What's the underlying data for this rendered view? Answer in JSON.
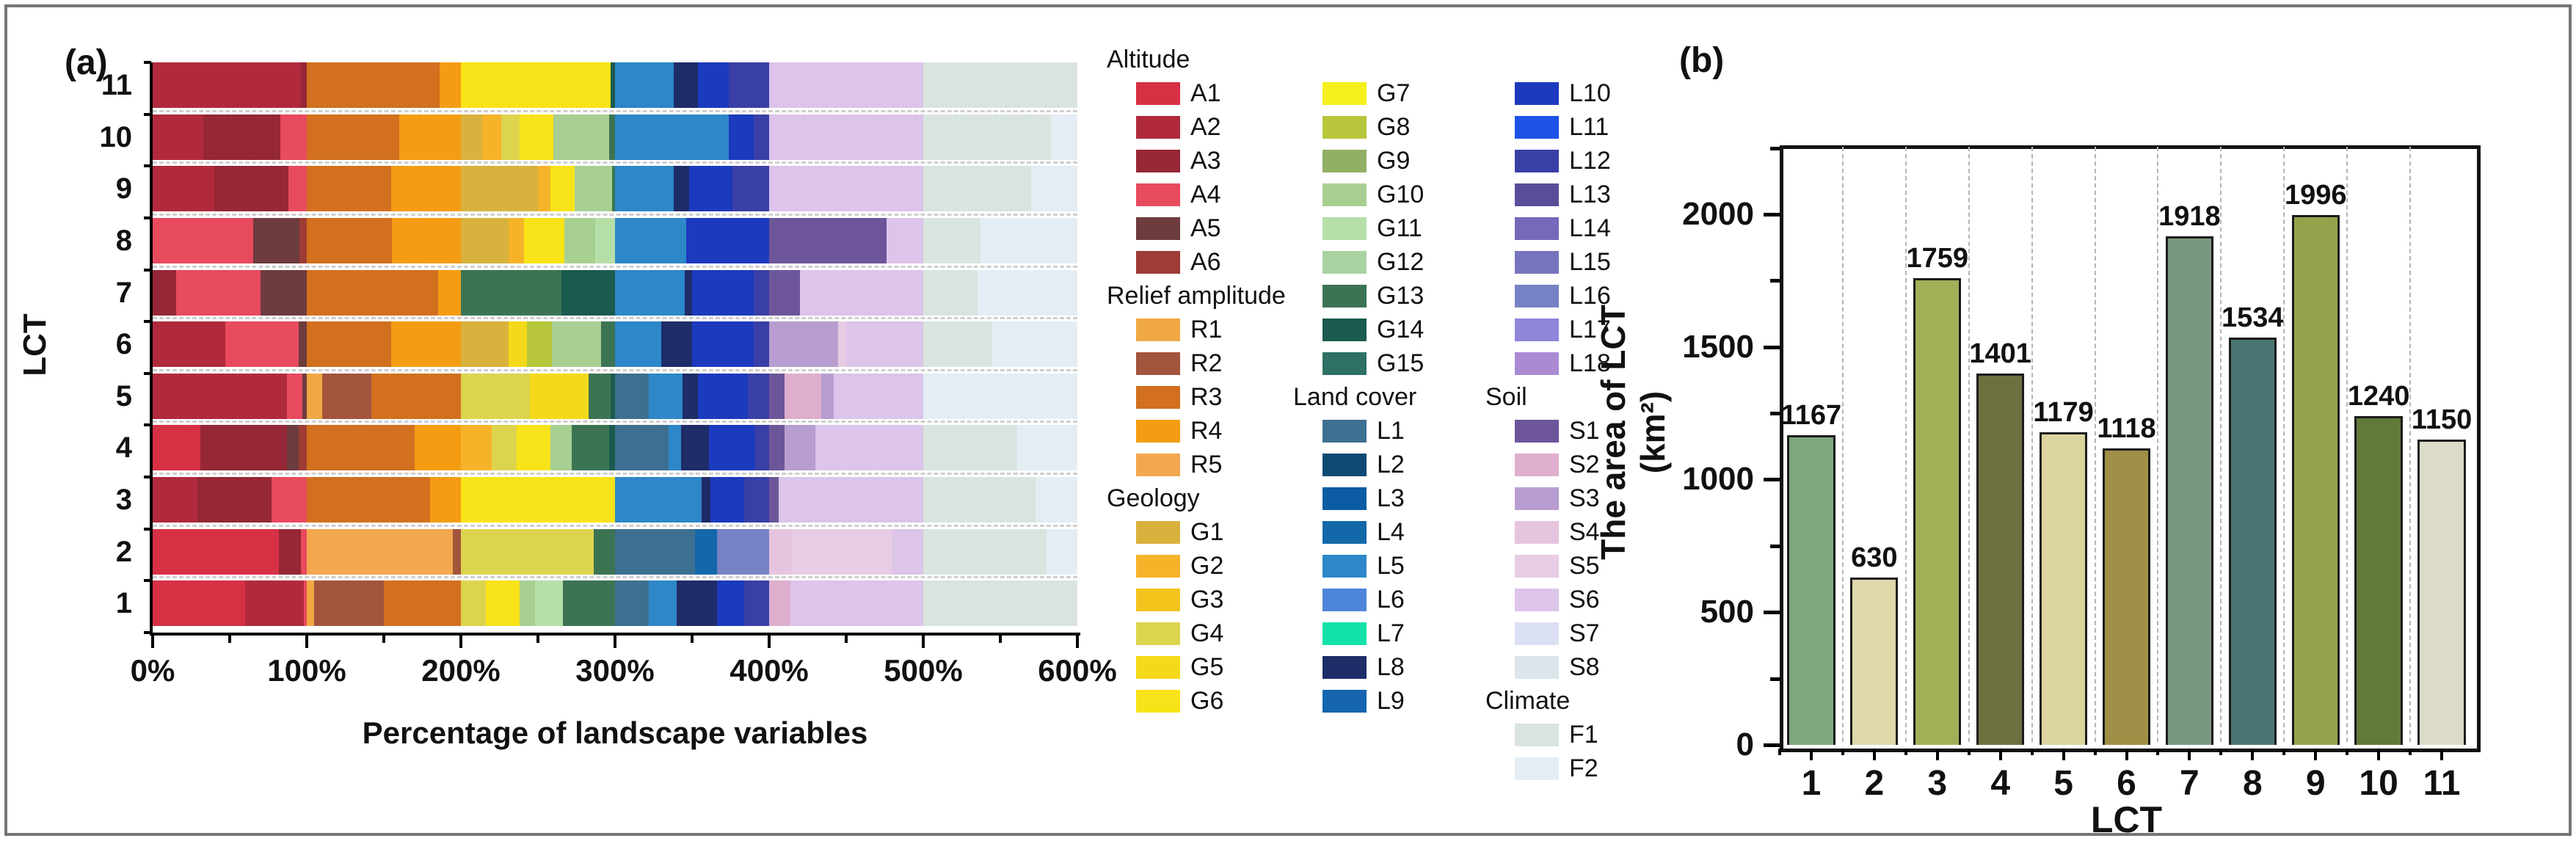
{
  "figure": {
    "panel_a_label": "(a)",
    "panel_b_label": "(b)"
  },
  "chart_data": [
    {
      "type": "bar",
      "subtype": "horizontal-stacked",
      "panel": "(a)",
      "xlabel": "Percentage of landscape variables",
      "ylabel": "LCT",
      "xlim": [
        0,
        600
      ],
      "xtick_labels": [
        "0%",
        "100%",
        "200%",
        "300%",
        "400%",
        "500%",
        "600%"
      ],
      "categories_top_to_bottom": [
        "11",
        "10",
        "9",
        "8",
        "7",
        "6",
        "5",
        "4",
        "3",
        "2",
        "1"
      ],
      "group_total_percent": 100,
      "groups": [
        "Altitude",
        "Relief amplitude",
        "Geology",
        "Land cover",
        "Soil",
        "Climate"
      ],
      "rows": [
        {
          "lct": "11",
          "segments": [
            [
              "A2",
              96
            ],
            [
              "A3",
              4
            ],
            [
              "R3",
              86
            ],
            [
              "R4",
              14
            ],
            [
              "G6",
              97
            ],
            [
              "G14",
              3
            ],
            [
              "L5",
              38
            ],
            [
              "L8",
              16
            ],
            [
              "L10",
              20
            ],
            [
              "L12",
              26
            ],
            [
              "S6",
              100
            ],
            [
              "F1",
              100
            ]
          ]
        },
        {
          "lct": "10",
          "segments": [
            [
              "A2",
              33
            ],
            [
              "A3",
              50
            ],
            [
              "A4",
              17
            ],
            [
              "R3",
              60
            ],
            [
              "R4",
              40
            ],
            [
              "G1",
              14
            ],
            [
              "G2",
              12
            ],
            [
              "G4",
              12
            ],
            [
              "G6",
              22
            ],
            [
              "G10",
              36
            ],
            [
              "G13",
              4
            ],
            [
              "L5",
              74
            ],
            [
              "L10",
              16
            ],
            [
              "L12",
              10
            ],
            [
              "S6",
              100
            ],
            [
              "F1",
              83
            ],
            [
              "F2",
              17
            ]
          ]
        },
        {
          "lct": "9",
          "segments": [
            [
              "A2",
              40
            ],
            [
              "A3",
              48
            ],
            [
              "A4",
              12
            ],
            [
              "R3",
              55
            ],
            [
              "R4",
              45
            ],
            [
              "G1",
              50
            ],
            [
              "G2",
              8
            ],
            [
              "G6",
              16
            ],
            [
              "G10",
              24
            ],
            [
              "G13",
              2
            ],
            [
              "L5",
              38
            ],
            [
              "L8",
              10
            ],
            [
              "L10",
              28
            ],
            [
              "L12",
              24
            ],
            [
              "S6",
              100
            ],
            [
              "F1",
              70
            ],
            [
              "F2",
              30
            ]
          ]
        },
        {
          "lct": "8",
          "segments": [
            [
              "A4",
              65
            ],
            [
              "A5",
              30
            ],
            [
              "A6",
              5
            ],
            [
              "R3",
              55
            ],
            [
              "R4",
              45
            ],
            [
              "G1",
              31
            ],
            [
              "G2",
              10
            ],
            [
              "G6",
              26
            ],
            [
              "G10",
              20
            ],
            [
              "G11",
              13
            ],
            [
              "L5",
              46
            ],
            [
              "L10",
              54
            ],
            [
              "S1",
              76
            ],
            [
              "S6",
              24
            ],
            [
              "F1",
              37
            ],
            [
              "F2",
              63
            ]
          ]
        },
        {
          "lct": "7",
          "segments": [
            [
              "A3",
              15
            ],
            [
              "A4",
              55
            ],
            [
              "A5",
              30
            ],
            [
              "R3",
              85
            ],
            [
              "R4",
              15
            ],
            [
              "G13",
              65
            ],
            [
              "G14",
              35
            ],
            [
              "L5",
              45
            ],
            [
              "L8",
              5
            ],
            [
              "L10",
              40
            ],
            [
              "L12",
              10
            ],
            [
              "S1",
              20
            ],
            [
              "S6",
              80
            ],
            [
              "F1",
              35
            ],
            [
              "F2",
              65
            ]
          ]
        },
        {
          "lct": "6",
          "segments": [
            [
              "A2",
              47
            ],
            [
              "A4",
              48
            ],
            [
              "A5",
              5
            ],
            [
              "R3",
              55
            ],
            [
              "R4",
              45
            ],
            [
              "G1",
              31
            ],
            [
              "G5",
              12
            ],
            [
              "G8",
              16
            ],
            [
              "G10",
              32
            ],
            [
              "G13",
              9
            ],
            [
              "L5",
              30
            ],
            [
              "L8",
              20
            ],
            [
              "L10",
              40
            ],
            [
              "L12",
              10
            ],
            [
              "S3",
              45
            ],
            [
              "S5",
              5
            ],
            [
              "S6",
              50
            ],
            [
              "F1",
              45
            ],
            [
              "F2",
              55
            ]
          ]
        },
        {
          "lct": "5",
          "segments": [
            [
              "A2",
              87
            ],
            [
              "A4",
              10
            ],
            [
              "A5",
              3
            ],
            [
              "R1",
              10
            ],
            [
              "R2",
              32
            ],
            [
              "R3",
              58
            ],
            [
              "G4",
              45
            ],
            [
              "G5",
              38
            ],
            [
              "G13",
              14
            ],
            [
              "G14",
              3
            ],
            [
              "L1",
              22
            ],
            [
              "L5",
              22
            ],
            [
              "L8",
              10
            ],
            [
              "L10",
              32
            ],
            [
              "L12",
              14
            ],
            [
              "S1",
              10
            ],
            [
              "S2",
              24
            ],
            [
              "S3",
              8
            ],
            [
              "S6",
              58
            ],
            [
              "F2",
              100
            ]
          ]
        },
        {
          "lct": "4",
          "segments": [
            [
              "A1",
              31
            ],
            [
              "A3",
              56
            ],
            [
              "A5",
              8
            ],
            [
              "A6",
              5
            ],
            [
              "R3",
              70
            ],
            [
              "R4",
              30
            ],
            [
              "G2",
              20
            ],
            [
              "G4",
              16
            ],
            [
              "G6",
              22
            ],
            [
              "G10",
              14
            ],
            [
              "G13",
              24
            ],
            [
              "G14",
              4
            ],
            [
              "L1",
              35
            ],
            [
              "L5",
              8
            ],
            [
              "L8",
              18
            ],
            [
              "L10",
              30
            ],
            [
              "L12",
              9
            ],
            [
              "S1",
              10
            ],
            [
              "S3",
              20
            ],
            [
              "S6",
              70
            ],
            [
              "F1",
              61
            ],
            [
              "F2",
              39
            ]
          ]
        },
        {
          "lct": "3",
          "segments": [
            [
              "A2",
              29
            ],
            [
              "A3",
              48
            ],
            [
              "A4",
              23
            ],
            [
              "R3",
              80
            ],
            [
              "R4",
              20
            ],
            [
              "G6",
              100
            ],
            [
              "L5",
              56
            ],
            [
              "L8",
              6
            ],
            [
              "L10",
              22
            ],
            [
              "L12",
              16
            ],
            [
              "S1",
              6
            ],
            [
              "S6",
              94
            ],
            [
              "F1",
              73
            ],
            [
              "F2",
              27
            ]
          ]
        },
        {
          "lct": "2",
          "segments": [
            [
              "A1",
              82
            ],
            [
              "A3",
              14
            ],
            [
              "A4",
              4
            ],
            [
              "R5",
              95
            ],
            [
              "R2",
              5
            ],
            [
              "G4",
              86
            ],
            [
              "G13",
              14
            ],
            [
              "L1",
              52
            ],
            [
              "L4",
              14
            ],
            [
              "L16",
              34
            ],
            [
              "S4",
              15
            ],
            [
              "S5",
              65
            ],
            [
              "S6",
              20
            ],
            [
              "F1",
              80
            ],
            [
              "F2",
              20
            ]
          ]
        },
        {
          "lct": "1",
          "segments": [
            [
              "A1",
              60
            ],
            [
              "A2",
              38
            ],
            [
              "A4",
              2
            ],
            [
              "R1",
              5
            ],
            [
              "R2",
              45
            ],
            [
              "R3",
              50
            ],
            [
              "G4",
              16
            ],
            [
              "G6",
              22
            ],
            [
              "G10",
              10
            ],
            [
              "G11",
              18
            ],
            [
              "G13",
              34
            ],
            [
              "L1",
              22
            ],
            [
              "L5",
              18
            ],
            [
              "L8",
              26
            ],
            [
              "L10",
              18
            ],
            [
              "L12",
              16
            ],
            [
              "S2",
              14
            ],
            [
              "S6",
              86
            ],
            [
              "F1",
              100
            ]
          ]
        }
      ]
    },
    {
      "type": "bar",
      "panel": "(b)",
      "xlabel": "LCT",
      "ylabel": "The area of LCT (km²)",
      "categories": [
        "1",
        "2",
        "3",
        "4",
        "5",
        "6",
        "7",
        "8",
        "9",
        "10",
        "11"
      ],
      "values": [
        1167,
        630,
        1759,
        1401,
        1179,
        1118,
        1918,
        1534,
        1996,
        1240,
        1150
      ],
      "bar_colors": [
        "#7fa77c",
        "#ded8ab",
        "#a0b057",
        "#6e6f41",
        "#dbd49e",
        "#a08f46",
        "#79997e",
        "#497672",
        "#94a24b",
        "#5f7a39",
        "#dcdbc7"
      ],
      "ylim": [
        0,
        2260
      ],
      "ytick_labels": [
        "0",
        "500",
        "1000",
        "1500",
        "2000"
      ],
      "ytick_step": 500,
      "yminor_step": 250,
      "grid": "vertical-dashed"
    }
  ],
  "legend": {
    "colors": {
      "A1": "#d63044",
      "A2": "#b02a3c",
      "A3": "#952736",
      "A4": "#e84a5e",
      "A5": "#6d3c3e",
      "A6": "#9e3c35",
      "R1": "#f0a844",
      "R2": "#a3543c",
      "R3": "#d2701f",
      "R4": "#f49d13",
      "R5": "#f3a74f",
      "G1": "#d8b23c",
      "G2": "#f6b32a",
      "G3": "#f3c41c",
      "G4": "#ddd44e",
      "G5": "#f4d91a",
      "G6": "#f8e318",
      "G7": "#f4f01e",
      "G8": "#b8c63b",
      "G9": "#92af66",
      "G10": "#a8cf92",
      "G11": "#b6dfa8",
      "G12": "#a9d2a2",
      "G13": "#3c7453",
      "G14": "#1a5a4f",
      "G15": "#2e7064",
      "L1": "#3d6f90",
      "L2": "#0e4a74",
      "L3": "#0c5ca4",
      "L4": "#1368a9",
      "L5": "#2d87c8",
      "L6": "#4c85da",
      "L7": "#12e1aa",
      "L8": "#1e2c68",
      "L9": "#1565af",
      "L10": "#1c3abd",
      "L11": "#1e53e8",
      "L12": "#3a3fa6",
      "L13": "#5b4c98",
      "L14": "#7569b9",
      "L15": "#7774be",
      "L16": "#7782c5",
      "L17": "#8f86dc",
      "L18": "#aa8bd3",
      "S1": "#6c5699",
      "S2": "#dfaecd",
      "S3": "#b89dd0",
      "S4": "#e6c4de",
      "S5": "#e7cce4",
      "S6": "#dcc4ea",
      "S7": "#dce0f3",
      "S8": "#dce5eb",
      "F1": "#d9e4df",
      "F2": "#e4edf4"
    },
    "columns": [
      [
        {
          "header": "Altitude"
        },
        {
          "item": "A1"
        },
        {
          "item": "A2"
        },
        {
          "item": "A3"
        },
        {
          "item": "A4"
        },
        {
          "item": "A5"
        },
        {
          "item": "A6"
        },
        {
          "header": "Relief amplitude"
        },
        {
          "item": "R1"
        },
        {
          "item": "R2"
        },
        {
          "item": "R3"
        },
        {
          "item": "R4"
        },
        {
          "item": "R5"
        },
        {
          "header": "Geology"
        },
        {
          "item": "G1"
        },
        {
          "item": "G2"
        },
        {
          "item": "G3"
        },
        {
          "item": "G4"
        },
        {
          "item": "G5"
        },
        {
          "item": "G6"
        }
      ],
      [
        {
          "item": "G7"
        },
        {
          "item": "G8"
        },
        {
          "item": "G9"
        },
        {
          "item": "G10"
        },
        {
          "item": "G11"
        },
        {
          "item": "G12"
        },
        {
          "item": "G13"
        },
        {
          "item": "G14"
        },
        {
          "item": "G15"
        },
        {
          "header": "Land cover"
        },
        {
          "item": "L1"
        },
        {
          "item": "L2"
        },
        {
          "item": "L3"
        },
        {
          "item": "L4"
        },
        {
          "item": "L5"
        },
        {
          "item": "L6"
        },
        {
          "item": "L7"
        },
        {
          "item": "L8"
        },
        {
          "item": "L9"
        }
      ],
      [
        {
          "item": "L10"
        },
        {
          "item": "L11"
        },
        {
          "item": "L12"
        },
        {
          "item": "L13"
        },
        {
          "item": "L14"
        },
        {
          "item": "L15"
        },
        {
          "item": "L16"
        },
        {
          "item": "L17"
        },
        {
          "item": "L18"
        },
        {
          "header": "Soil"
        },
        {
          "item": "S1"
        },
        {
          "item": "S2"
        },
        {
          "item": "S3"
        },
        {
          "item": "S4"
        },
        {
          "item": "S5"
        },
        {
          "item": "S6"
        },
        {
          "item": "S7"
        },
        {
          "item": "S8"
        },
        {
          "header": "Climate"
        },
        {
          "item": "F1"
        },
        {
          "item": "F2"
        }
      ]
    ]
  }
}
